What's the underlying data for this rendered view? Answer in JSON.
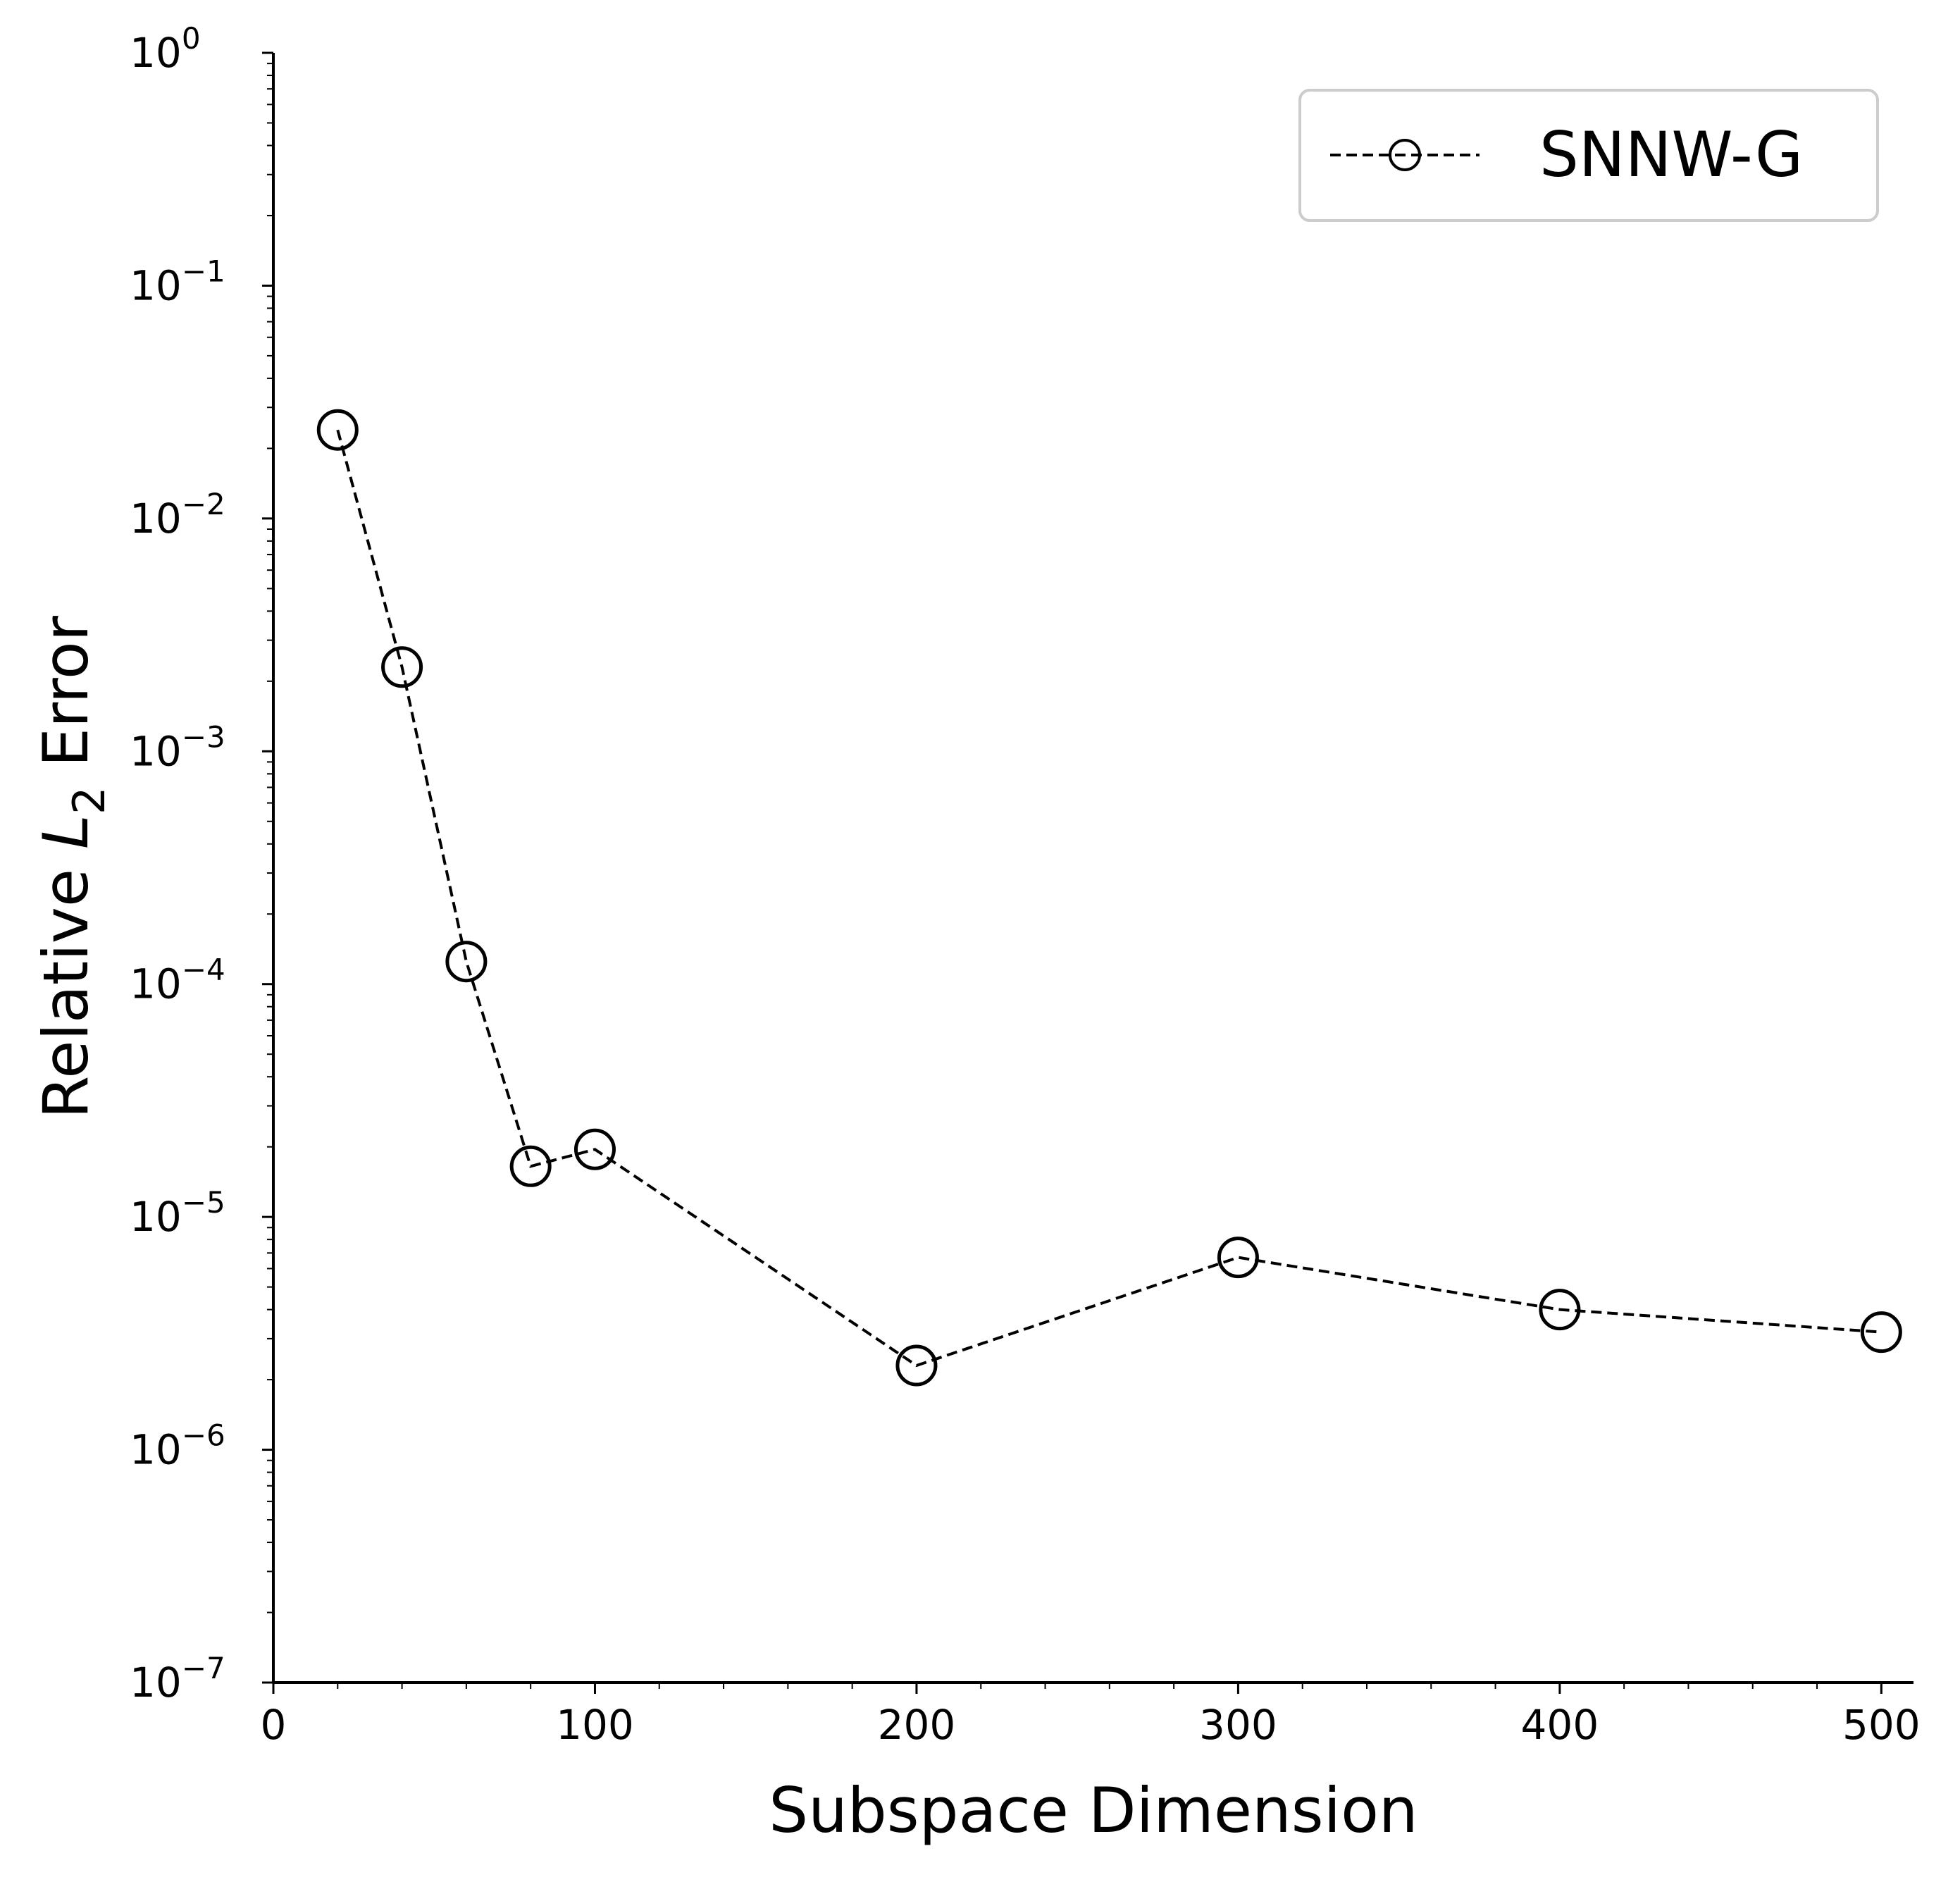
{
  "chart_data": {
    "type": "line",
    "xlabel": "Subspace Dimension",
    "ylabel_prefix": "Relative ",
    "ylabel_symbol": "L",
    "ylabel_subscript": "2",
    "ylabel_suffix": " Error",
    "xlim": [
      0,
      510
    ],
    "ylim": [
      1e-07,
      1
    ],
    "yscale": "log",
    "x_ticks": [
      0,
      100,
      200,
      300,
      400,
      500
    ],
    "x_tick_labels": [
      "0",
      "100",
      "200",
      "300",
      "400",
      "500"
    ],
    "y_ticks": [
      -7,
      -6,
      -5,
      -4,
      -3,
      -2,
      -1,
      0
    ],
    "y_tick_base": "10",
    "y_tick_exponents": [
      "−7",
      "−6",
      "−5",
      "−4",
      "−3",
      "−2",
      "−1",
      "0"
    ],
    "grid": false,
    "legend_position": "top-right",
    "series": [
      {
        "name": "SNNW-G",
        "line_style": "dashed",
        "marker": "open-circle",
        "color": "#000000",
        "x": [
          20,
          40,
          60,
          80,
          100,
          200,
          300,
          400,
          500
        ],
        "y": [
          0.024,
          0.0023,
          0.000125,
          1.65e-05,
          1.95e-05,
          2.3e-06,
          6.7e-06,
          4e-06,
          3.2e-06
        ]
      }
    ]
  }
}
